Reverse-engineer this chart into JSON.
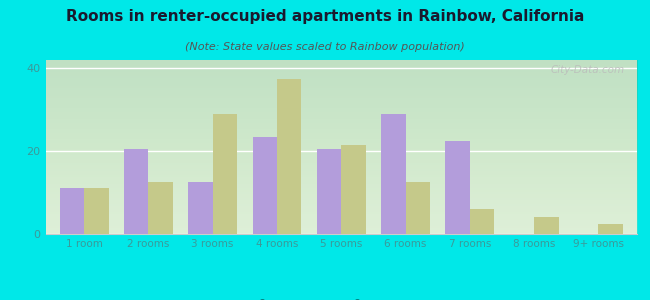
{
  "title": "Rooms in renter-occupied apartments in Rainbow, California",
  "subtitle": "(Note: State values scaled to Rainbow population)",
  "categories": [
    "1 room",
    "2 rooms",
    "3 rooms",
    "4 rooms",
    "5 rooms",
    "6 rooms",
    "7 rooms",
    "8 rooms",
    "9+ rooms"
  ],
  "rainbow_values": [
    11,
    20.5,
    12.5,
    23.5,
    20.5,
    29,
    22.5,
    0,
    0
  ],
  "california_values": [
    11,
    12.5,
    29,
    37.5,
    21.5,
    12.5,
    6,
    4,
    2.5
  ],
  "rainbow_color": "#b39ddb",
  "california_color": "#c5c98a",
  "background_outer": "#00e8e8",
  "background_plot_top": "#e8f0e0",
  "background_plot_bottom": "#f8fff8",
  "ylim": [
    0,
    42
  ],
  "yticks": [
    0,
    20,
    40
  ],
  "bar_width": 0.38,
  "title_fontsize": 11,
  "subtitle_fontsize": 8,
  "tick_label_fontsize": 7.5,
  "tick_label_color": "#3a9a9a",
  "watermark_text": "City-Data.com",
  "legend_label_color": "#3a9a9a"
}
